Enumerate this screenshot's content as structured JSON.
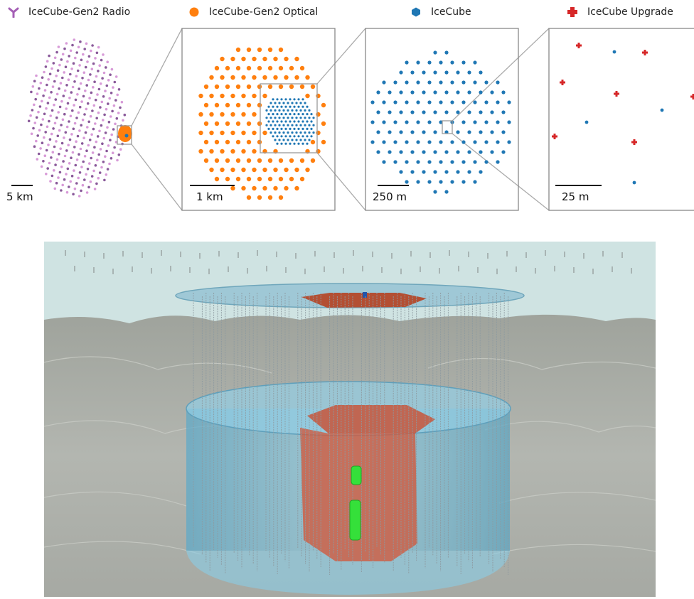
{
  "legend": {
    "radio": {
      "label": "IceCube-Gen2 Radio",
      "color": "#a45fb5",
      "icon": "radio-station-y-icon"
    },
    "optical": {
      "label": "IceCube-Gen2 Optical",
      "color": "#ff7f0e",
      "icon": "circle-marker-icon"
    },
    "icecube": {
      "label": "IceCube",
      "color": "#1f77b4",
      "icon": "hexagon-marker-icon"
    },
    "upgrade": {
      "label": "IceCube Upgrade",
      "color": "#d62728",
      "icon": "plus-marker-icon"
    }
  },
  "panels": [
    {
      "id": "radio-array",
      "scale_label": "5 km"
    },
    {
      "id": "optical-array",
      "scale_label": "1 km"
    },
    {
      "id": "icecube-array",
      "scale_label": "250 m"
    },
    {
      "id": "upgrade-array",
      "scale_label": "25 m"
    }
  ],
  "colors": {
    "sky": "#cfe3e2",
    "terrain": "#a9aca6",
    "gen2_volume": "#7cc4e0",
    "icecube_volume": "#d9573a",
    "upgrade_volume": "#39e03a",
    "strings": "#8d9aa0"
  }
}
